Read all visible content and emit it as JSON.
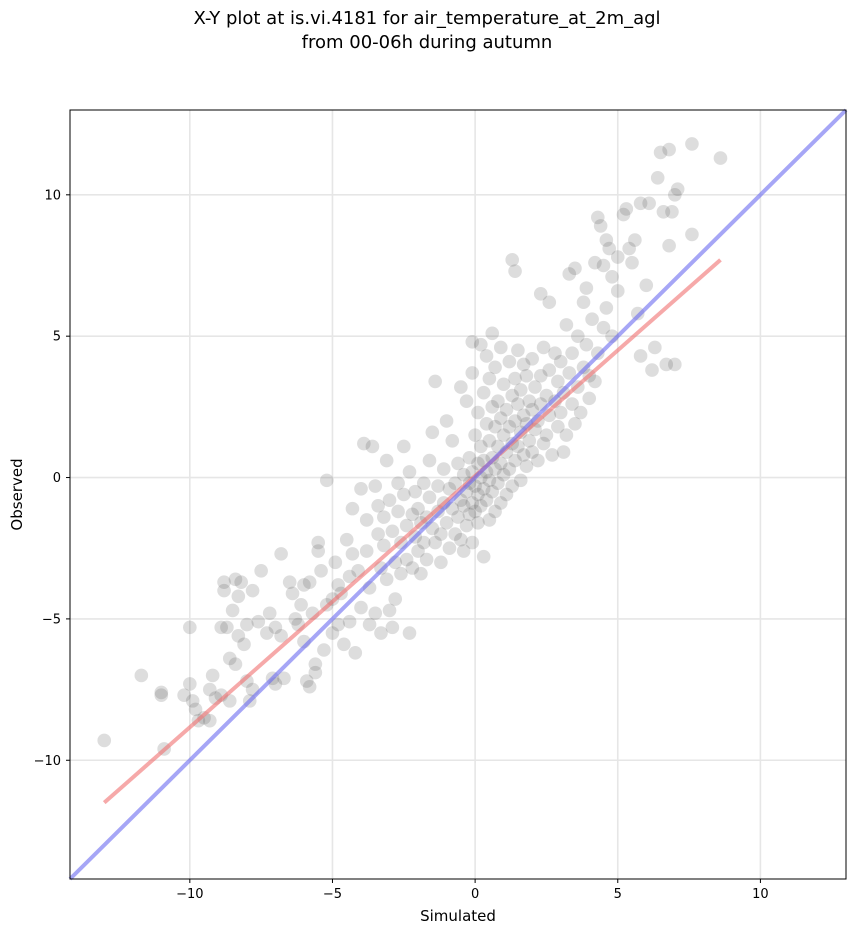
{
  "chart_data": {
    "type": "scatter",
    "title": "X-Y plot at is.vi.4181 for air_temperature_at_2m_agl",
    "subtitle": "from 00-06h during autumn",
    "xlabel": "Simulated",
    "ylabel": "Observed",
    "xlim": [
      -14.2,
      13.0
    ],
    "ylim": [
      -14.2,
      13.0
    ],
    "xticks": [
      -10,
      -5,
      0,
      5,
      10
    ],
    "yticks": [
      -10,
      -5,
      0,
      5,
      10
    ],
    "xtick_labels": [
      "−10",
      "−5",
      "0",
      "5",
      "10"
    ],
    "ytick_labels": [
      "−10",
      "−5",
      "0",
      "5",
      "10"
    ],
    "grid": true,
    "colors": {
      "points": "#555555",
      "fit_line": "#f07070",
      "identity_line": "#6b6bf0"
    },
    "series": [
      {
        "kind": "points",
        "points": [
          [
            -13.0,
            -9.3
          ],
          [
            -11.7,
            -7.0
          ],
          [
            -11.0,
            -7.6
          ],
          [
            -11.0,
            -7.7
          ],
          [
            -10.9,
            -9.6
          ],
          [
            -10.2,
            -7.7
          ],
          [
            -10.0,
            -5.3
          ],
          [
            -10.0,
            -7.3
          ],
          [
            -9.9,
            -7.9
          ],
          [
            -9.8,
            -8.2
          ],
          [
            -9.7,
            -8.6
          ],
          [
            -9.5,
            -8.5
          ],
          [
            -9.3,
            -8.6
          ],
          [
            -9.3,
            -7.5
          ],
          [
            -9.2,
            -7.0
          ],
          [
            -9.1,
            -7.8
          ],
          [
            -8.9,
            -5.3
          ],
          [
            -8.9,
            -7.7
          ],
          [
            -8.8,
            -3.7
          ],
          [
            -8.8,
            -4.0
          ],
          [
            -8.7,
            -5.3
          ],
          [
            -8.6,
            -6.4
          ],
          [
            -8.6,
            -7.9
          ],
          [
            -8.5,
            -4.7
          ],
          [
            -8.4,
            -3.6
          ],
          [
            -8.4,
            -6.6
          ],
          [
            -8.3,
            -4.2
          ],
          [
            -8.3,
            -5.6
          ],
          [
            -8.2,
            -3.7
          ],
          [
            -8.1,
            -5.9
          ],
          [
            -8.0,
            -5.2
          ],
          [
            -8.0,
            -7.2
          ],
          [
            -7.9,
            -7.9
          ],
          [
            -7.8,
            -4.0
          ],
          [
            -7.8,
            -7.5
          ],
          [
            -7.6,
            -5.1
          ],
          [
            -7.5,
            -3.3
          ],
          [
            -7.3,
            -5.5
          ],
          [
            -7.2,
            -4.8
          ],
          [
            -7.1,
            -7.1
          ],
          [
            -7.0,
            -7.3
          ],
          [
            -7.0,
            -5.3
          ],
          [
            -6.8,
            -2.7
          ],
          [
            -6.8,
            -5.6
          ],
          [
            -6.7,
            -7.1
          ],
          [
            -6.5,
            -3.7
          ],
          [
            -6.4,
            -4.1
          ],
          [
            -6.3,
            -5.0
          ],
          [
            -6.2,
            -5.2
          ],
          [
            -6.1,
            -4.5
          ],
          [
            -6.0,
            -3.8
          ],
          [
            -6.0,
            -5.8
          ],
          [
            -5.9,
            -7.2
          ],
          [
            -5.8,
            -3.7
          ],
          [
            -5.8,
            -7.4
          ],
          [
            -5.7,
            -4.8
          ],
          [
            -5.6,
            -6.6
          ],
          [
            -5.6,
            -6.9
          ],
          [
            -5.5,
            -2.3
          ],
          [
            -5.5,
            -2.6
          ],
          [
            -5.4,
            -3.3
          ],
          [
            -5.3,
            -6.1
          ],
          [
            -5.2,
            -0.1
          ],
          [
            -5.2,
            -4.5
          ],
          [
            -5.0,
            -4.3
          ],
          [
            -5.0,
            -5.5
          ],
          [
            -4.9,
            -3.0
          ],
          [
            -4.8,
            -3.8
          ],
          [
            -4.8,
            -5.2
          ],
          [
            -4.7,
            -4.1
          ],
          [
            -4.6,
            -5.9
          ],
          [
            -4.5,
            -2.2
          ],
          [
            -4.4,
            -3.5
          ],
          [
            -4.4,
            -5.1
          ],
          [
            -4.3,
            -1.1
          ],
          [
            -4.3,
            -2.7
          ],
          [
            -4.2,
            -6.2
          ],
          [
            -4.1,
            -3.3
          ],
          [
            -4.0,
            -0.4
          ],
          [
            -4.0,
            -4.6
          ],
          [
            -3.9,
            1.2
          ],
          [
            -3.8,
            -1.5
          ],
          [
            -3.8,
            -2.6
          ],
          [
            -3.7,
            -3.9
          ],
          [
            -3.7,
            -5.2
          ],
          [
            -3.6,
            1.1
          ],
          [
            -3.5,
            -0.3
          ],
          [
            -3.5,
            -4.8
          ],
          [
            -3.4,
            -1.0
          ],
          [
            -3.4,
            -2.0
          ],
          [
            -3.3,
            -3.2
          ],
          [
            -3.3,
            -5.5
          ],
          [
            -3.2,
            -1.4
          ],
          [
            -3.2,
            -2.4
          ],
          [
            -3.1,
            0.6
          ],
          [
            -3.1,
            -3.6
          ],
          [
            -3.0,
            -0.8
          ],
          [
            -3.0,
            -4.7
          ],
          [
            -2.9,
            -1.9
          ],
          [
            -2.9,
            -5.3
          ],
          [
            -2.8,
            -3.0
          ],
          [
            -2.8,
            -4.3
          ],
          [
            -2.7,
            -0.2
          ],
          [
            -2.7,
            -1.2
          ],
          [
            -2.6,
            -2.3
          ],
          [
            -2.6,
            -3.4
          ],
          [
            -2.5,
            1.1
          ],
          [
            -2.5,
            -0.6
          ],
          [
            -2.4,
            -1.7
          ],
          [
            -2.4,
            -2.9
          ],
          [
            -2.3,
            0.2
          ],
          [
            -2.3,
            -5.5
          ],
          [
            -2.2,
            -1.3
          ],
          [
            -2.2,
            -3.2
          ],
          [
            -2.1,
            -2.1
          ],
          [
            -2.1,
            -0.5
          ],
          [
            -2.0,
            -2.6
          ],
          [
            -2.0,
            -1.1
          ],
          [
            -1.9,
            -1.6
          ],
          [
            -1.9,
            -3.4
          ],
          [
            -1.8,
            -0.2
          ],
          [
            -1.8,
            -2.3
          ],
          [
            -1.7,
            -1.4
          ],
          [
            -1.7,
            -2.9
          ],
          [
            -1.6,
            0.6
          ],
          [
            -1.6,
            -0.7
          ],
          [
            -1.5,
            1.6
          ],
          [
            -1.5,
            -1.8
          ],
          [
            -1.4,
            3.4
          ],
          [
            -1.4,
            -2.3
          ],
          [
            -1.3,
            -0.3
          ],
          [
            -1.3,
            -1.2
          ],
          [
            -1.2,
            -2.0
          ],
          [
            -1.2,
            -3.0
          ],
          [
            -1.1,
            0.3
          ],
          [
            -1.1,
            -0.9
          ],
          [
            -1.0,
            2.0
          ],
          [
            -1.0,
            -1.6
          ],
          [
            -0.9,
            -0.4
          ],
          [
            -0.9,
            -2.5
          ],
          [
            -0.8,
            1.3
          ],
          [
            -0.8,
            -1.1
          ],
          [
            -0.7,
            -0.2
          ],
          [
            -0.7,
            -2.0
          ],
          [
            -0.6,
            0.5
          ],
          [
            -0.6,
            -1.4
          ],
          [
            -0.5,
            3.2
          ],
          [
            -0.5,
            -0.8
          ],
          [
            -0.5,
            -2.2
          ],
          [
            -0.4,
            0.1
          ],
          [
            -0.4,
            -1.0
          ],
          [
            -0.4,
            -2.6
          ],
          [
            -0.3,
            2.7
          ],
          [
            -0.3,
            -0.5
          ],
          [
            -0.3,
            -1.7
          ],
          [
            -0.2,
            0.7
          ],
          [
            -0.2,
            -0.2
          ],
          [
            -0.2,
            -1.3
          ],
          [
            -0.1,
            4.8
          ],
          [
            -0.1,
            3.7
          ],
          [
            -0.1,
            0.2
          ],
          [
            -0.1,
            -0.9
          ],
          [
            -0.1,
            -2.3
          ],
          [
            0.0,
            1.5
          ],
          [
            0.0,
            -0.3
          ],
          [
            0.0,
            -1.2
          ],
          [
            0.1,
            2.3
          ],
          [
            0.1,
            0.5
          ],
          [
            0.1,
            -0.6
          ],
          [
            0.1,
            -1.6
          ],
          [
            0.2,
            4.7
          ],
          [
            0.2,
            1.1
          ],
          [
            0.2,
            0.0
          ],
          [
            0.2,
            -1.0
          ],
          [
            0.3,
            3.0
          ],
          [
            0.3,
            0.6
          ],
          [
            0.3,
            -0.4
          ],
          [
            0.3,
            -2.8
          ],
          [
            0.4,
            4.3
          ],
          [
            0.4,
            1.9
          ],
          [
            0.4,
            0.2
          ],
          [
            0.4,
            -0.8
          ],
          [
            0.5,
            3.5
          ],
          [
            0.5,
            1.3
          ],
          [
            0.5,
            -0.1
          ],
          [
            0.5,
            -1.5
          ],
          [
            0.6,
            5.1
          ],
          [
            0.6,
            2.5
          ],
          [
            0.6,
            0.7
          ],
          [
            0.6,
            -0.5
          ],
          [
            0.7,
            3.9
          ],
          [
            0.7,
            1.8
          ],
          [
            0.7,
            0.3
          ],
          [
            0.7,
            -1.2
          ],
          [
            0.8,
            2.7
          ],
          [
            0.8,
            1.1
          ],
          [
            0.8,
            -0.2
          ],
          [
            0.9,
            4.6
          ],
          [
            0.9,
            2.1
          ],
          [
            0.9,
            0.5
          ],
          [
            0.9,
            -0.9
          ],
          [
            1.0,
            3.3
          ],
          [
            1.0,
            1.5
          ],
          [
            1.0,
            0.1
          ],
          [
            1.1,
            2.4
          ],
          [
            1.1,
            0.9
          ],
          [
            1.1,
            -0.6
          ],
          [
            1.2,
            4.1
          ],
          [
            1.2,
            1.8
          ],
          [
            1.2,
            0.3
          ],
          [
            1.3,
            7.7
          ],
          [
            1.3,
            2.9
          ],
          [
            1.3,
            1.2
          ],
          [
            1.3,
            -0.3
          ],
          [
            1.4,
            7.3
          ],
          [
            1.4,
            3.5
          ],
          [
            1.4,
            2.0
          ],
          [
            1.4,
            0.6
          ],
          [
            1.5,
            4.5
          ],
          [
            1.5,
            2.6
          ],
          [
            1.5,
            1.1
          ],
          [
            1.6,
            3.1
          ],
          [
            1.6,
            1.6
          ],
          [
            1.6,
            -0.1
          ],
          [
            1.7,
            4.0
          ],
          [
            1.7,
            2.2
          ],
          [
            1.7,
            0.8
          ],
          [
            1.8,
            3.6
          ],
          [
            1.8,
            1.9
          ],
          [
            1.8,
            0.4
          ],
          [
            1.9,
            2.7
          ],
          [
            1.9,
            1.3
          ],
          [
            2.0,
            4.2
          ],
          [
            2.0,
            2.4
          ],
          [
            2.0,
            0.9
          ],
          [
            2.1,
            3.2
          ],
          [
            2.1,
            1.7
          ],
          [
            2.2,
            2.0
          ],
          [
            2.2,
            0.6
          ],
          [
            2.3,
            6.5
          ],
          [
            2.3,
            3.6
          ],
          [
            2.3,
            2.6
          ],
          [
            2.4,
            1.2
          ],
          [
            2.4,
            4.6
          ],
          [
            2.5,
            2.9
          ],
          [
            2.5,
            1.5
          ],
          [
            2.6,
            6.2
          ],
          [
            2.6,
            3.8
          ],
          [
            2.6,
            2.2
          ],
          [
            2.7,
            0.8
          ],
          [
            2.8,
            4.4
          ],
          [
            2.8,
            2.7
          ],
          [
            2.9,
            1.8
          ],
          [
            2.9,
            3.4
          ],
          [
            3.0,
            4.1
          ],
          [
            3.0,
            2.3
          ],
          [
            3.1,
            0.9
          ],
          [
            3.1,
            3.0
          ],
          [
            3.2,
            5.4
          ],
          [
            3.2,
            1.5
          ],
          [
            3.3,
            7.2
          ],
          [
            3.3,
            3.7
          ],
          [
            3.4,
            2.6
          ],
          [
            3.4,
            4.4
          ],
          [
            3.5,
            7.4
          ],
          [
            3.5,
            1.9
          ],
          [
            3.6,
            3.2
          ],
          [
            3.6,
            5.0
          ],
          [
            3.7,
            2.3
          ],
          [
            3.8,
            6.2
          ],
          [
            3.8,
            3.9
          ],
          [
            3.9,
            6.7
          ],
          [
            3.9,
            4.7
          ],
          [
            4.0,
            2.8
          ],
          [
            4.0,
            3.6
          ],
          [
            4.1,
            5.6
          ],
          [
            4.2,
            7.6
          ],
          [
            4.2,
            3.4
          ],
          [
            4.3,
            9.2
          ],
          [
            4.3,
            4.4
          ],
          [
            4.4,
            8.9
          ],
          [
            4.5,
            7.5
          ],
          [
            4.5,
            5.3
          ],
          [
            4.6,
            8.4
          ],
          [
            4.6,
            6.0
          ],
          [
            4.7,
            8.1
          ],
          [
            4.8,
            7.1
          ],
          [
            4.8,
            5.0
          ],
          [
            5.0,
            7.8
          ],
          [
            5.0,
            6.6
          ],
          [
            5.2,
            9.3
          ],
          [
            5.3,
            9.5
          ],
          [
            5.4,
            8.1
          ],
          [
            5.5,
            7.6
          ],
          [
            5.6,
            8.4
          ],
          [
            5.7,
            5.8
          ],
          [
            5.8,
            9.7
          ],
          [
            5.8,
            4.3
          ],
          [
            6.0,
            6.8
          ],
          [
            6.1,
            9.7
          ],
          [
            6.2,
            3.8
          ],
          [
            6.3,
            4.6
          ],
          [
            6.4,
            10.6
          ],
          [
            6.5,
            11.5
          ],
          [
            6.6,
            9.4
          ],
          [
            6.7,
            4.0
          ],
          [
            6.8,
            11.6
          ],
          [
            6.8,
            8.2
          ],
          [
            6.9,
            9.4
          ],
          [
            7.0,
            4.0
          ],
          [
            7.0,
            10.0
          ],
          [
            7.1,
            10.2
          ],
          [
            7.6,
            8.6
          ],
          [
            7.6,
            11.8
          ],
          [
            8.6,
            11.3
          ]
        ]
      },
      {
        "kind": "fit_line",
        "x": [
          -13.0,
          8.6
        ],
        "y": [
          -11.5,
          7.7
        ]
      },
      {
        "kind": "identity_line",
        "x": [
          -14.2,
          13.0
        ],
        "y": [
          -14.2,
          13.0
        ]
      }
    ]
  }
}
